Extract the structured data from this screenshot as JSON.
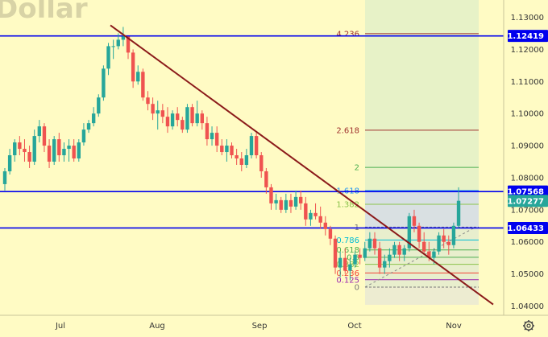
{
  "chart_data": {
    "type": "candlestick",
    "title": "Dollar",
    "ylim": [
      1.036,
      1.135
    ],
    "y_ticks": [
      "1.13000",
      "1.12000",
      "1.11000",
      "1.10000",
      "1.09000",
      "1.08000",
      "1.07000",
      "1.06000",
      "1.05000",
      "1.04000"
    ],
    "x_labels": [
      "Jul",
      "Aug",
      "Sep",
      "Oct",
      "Nov"
    ],
    "price_levels": [
      {
        "label": "1.12419",
        "value": 1.12419,
        "color": "#0000ee"
      },
      {
        "label": "1.07568",
        "value": 1.07568,
        "color": "#0000ee"
      },
      {
        "label": "1.06433",
        "value": 1.06433,
        "color": "#0000ee"
      },
      {
        "label": "1.07277",
        "value": 1.07277,
        "color": "#26a69a"
      }
    ],
    "fib_levels": [
      {
        "label": "4.236",
        "value": 1.1249,
        "color": "#a0312e"
      },
      {
        "label": "2.618",
        "value": 1.0948,
        "color": "#a0312e"
      },
      {
        "label": "2",
        "value": 1.0832,
        "color": "#4caf50"
      },
      {
        "label": "1.618",
        "value": 1.076,
        "color": "#2196f3"
      },
      {
        "label": "1.382",
        "value": 1.0717,
        "color": "#8bc34a"
      },
      {
        "label": "1",
        "value": 1.0646,
        "color": "#787878"
      },
      {
        "label": "0.786",
        "value": 1.0606,
        "color": "#00bcd4"
      },
      {
        "label": "0.618",
        "value": 1.0575,
        "color": "#4caf50"
      },
      {
        "label": "0.5",
        "value": 1.0552,
        "color": "#4caf50"
      },
      {
        "label": "0.382",
        "value": 1.053,
        "color": "#8bc34a"
      },
      {
        "label": "0.236",
        "value": 1.0503,
        "color": "#f44336"
      },
      {
        "label": "0.125",
        "value": 1.0482,
        "color": "#9c27b0"
      },
      {
        "label": "0",
        "value": 1.0459,
        "color": "#787878"
      }
    ],
    "trendline": {
      "from": {
        "date": "Jul 18",
        "price": 1.1275
      },
      "to": {
        "date": "Nov 15",
        "price": 1.0405
      }
    },
    "candles": [
      [
        1.078,
        1.083,
        1.076,
        1.082
      ],
      [
        1.082,
        1.089,
        1.081,
        1.087
      ],
      [
        1.087,
        1.092,
        1.085,
        1.091
      ],
      [
        1.091,
        1.093,
        1.087,
        1.089
      ],
      [
        1.089,
        1.092,
        1.085,
        1.088
      ],
      [
        1.088,
        1.09,
        1.083,
        1.085
      ],
      [
        1.085,
        1.095,
        1.084,
        1.093
      ],
      [
        1.093,
        1.098,
        1.091,
        1.096
      ],
      [
        1.096,
        1.097,
        1.088,
        1.09
      ],
      [
        1.09,
        1.092,
        1.083,
        1.085
      ],
      [
        1.085,
        1.093,
        1.084,
        1.092
      ],
      [
        1.092,
        1.094,
        1.085,
        1.087
      ],
      [
        1.087,
        1.091,
        1.085,
        1.089
      ],
      [
        1.089,
        1.092,
        1.085,
        1.09
      ],
      [
        1.09,
        1.092,
        1.085,
        1.086
      ],
      [
        1.086,
        1.092,
        1.085,
        1.091
      ],
      [
        1.091,
        1.097,
        1.09,
        1.095
      ],
      [
        1.095,
        1.098,
        1.094,
        1.097
      ],
      [
        1.097,
        1.102,
        1.096,
        1.1
      ],
      [
        1.1,
        1.106,
        1.099,
        1.105
      ],
      [
        1.105,
        1.115,
        1.104,
        1.114
      ],
      [
        1.114,
        1.122,
        1.112,
        1.121
      ],
      [
        1.121,
        1.123,
        1.117,
        1.121
      ],
      [
        1.121,
        1.125,
        1.12,
        1.123
      ],
      [
        1.123,
        1.127,
        1.121,
        1.124
      ],
      [
        1.124,
        1.124,
        1.117,
        1.119
      ],
      [
        1.119,
        1.12,
        1.108,
        1.11
      ],
      [
        1.11,
        1.115,
        1.109,
        1.113
      ],
      [
        1.113,
        1.114,
        1.104,
        1.105
      ],
      [
        1.105,
        1.107,
        1.101,
        1.103
      ],
      [
        1.103,
        1.105,
        1.098,
        1.1
      ],
      [
        1.1,
        1.104,
        1.095,
        1.101
      ],
      [
        1.101,
        1.103,
        1.097,
        1.099
      ],
      [
        1.099,
        1.102,
        1.094,
        1.096
      ],
      [
        1.096,
        1.101,
        1.095,
        1.1
      ],
      [
        1.1,
        1.102,
        1.096,
        1.098
      ],
      [
        1.098,
        1.099,
        1.094,
        1.095
      ],
      [
        1.095,
        1.103,
        1.094,
        1.102
      ],
      [
        1.102,
        1.103,
        1.096,
        1.097
      ],
      [
        1.097,
        1.104,
        1.096,
        1.1
      ],
      [
        1.1,
        1.101,
        1.095,
        1.097
      ],
      [
        1.097,
        1.099,
        1.09,
        1.092
      ],
      [
        1.092,
        1.096,
        1.09,
        1.094
      ],
      [
        1.094,
        1.096,
        1.088,
        1.09
      ],
      [
        1.09,
        1.092,
        1.087,
        1.088
      ],
      [
        1.088,
        1.092,
        1.085,
        1.09
      ],
      [
        1.09,
        1.091,
        1.086,
        1.087
      ],
      [
        1.087,
        1.089,
        1.084,
        1.086
      ],
      [
        1.086,
        1.088,
        1.082,
        1.084
      ],
      [
        1.084,
        1.089,
        1.083,
        1.087
      ],
      [
        1.087,
        1.094,
        1.086,
        1.093
      ],
      [
        1.093,
        1.094,
        1.086,
        1.087
      ],
      [
        1.087,
        1.088,
        1.08,
        1.082
      ],
      [
        1.082,
        1.083,
        1.075,
        1.077
      ],
      [
        1.077,
        1.078,
        1.07,
        1.072
      ],
      [
        1.072,
        1.075,
        1.07,
        1.073
      ],
      [
        1.073,
        1.074,
        1.069,
        1.07
      ],
      [
        1.07,
        1.075,
        1.069,
        1.073
      ],
      [
        1.073,
        1.075,
        1.069,
        1.071
      ],
      [
        1.071,
        1.076,
        1.07,
        1.074
      ],
      [
        1.074,
        1.076,
        1.07,
        1.072
      ],
      [
        1.072,
        1.074,
        1.065,
        1.067
      ],
      [
        1.067,
        1.07,
        1.065,
        1.069
      ],
      [
        1.069,
        1.072,
        1.067,
        1.068
      ],
      [
        1.068,
        1.071,
        1.064,
        1.066
      ],
      [
        1.066,
        1.068,
        1.062,
        1.064
      ],
      [
        1.064,
        1.065,
        1.059,
        1.061
      ],
      [
        1.061,
        1.062,
        1.05,
        1.052
      ],
      [
        1.052,
        1.057,
        1.049,
        1.055
      ],
      [
        1.055,
        1.058,
        1.05,
        1.051
      ],
      [
        1.051,
        1.055,
        1.048,
        1.053
      ],
      [
        1.053,
        1.057,
        1.052,
        1.056
      ],
      [
        1.056,
        1.058,
        1.053,
        1.055
      ],
      [
        1.055,
        1.06,
        1.054,
        1.058
      ],
      [
        1.058,
        1.063,
        1.057,
        1.061
      ],
      [
        1.061,
        1.063,
        1.056,
        1.058
      ],
      [
        1.058,
        1.06,
        1.05,
        1.052
      ],
      [
        1.052,
        1.056,
        1.05,
        1.054
      ],
      [
        1.054,
        1.058,
        1.052,
        1.056
      ],
      [
        1.056,
        1.06,
        1.055,
        1.059
      ],
      [
        1.059,
        1.06,
        1.054,
        1.056
      ],
      [
        1.056,
        1.059,
        1.054,
        1.058
      ],
      [
        1.058,
        1.069,
        1.057,
        1.068
      ],
      [
        1.068,
        1.07,
        1.063,
        1.065
      ],
      [
        1.065,
        1.066,
        1.058,
        1.06
      ],
      [
        1.06,
        1.063,
        1.056,
        1.057
      ],
      [
        1.057,
        1.06,
        1.054,
        1.055
      ],
      [
        1.055,
        1.058,
        1.053,
        1.057
      ],
      [
        1.057,
        1.063,
        1.056,
        1.062
      ],
      [
        1.062,
        1.064,
        1.058,
        1.06
      ],
      [
        1.06,
        1.062,
        1.056,
        1.059
      ],
      [
        1.059,
        1.066,
        1.058,
        1.065
      ],
      [
        1.065,
        1.077,
        1.064,
        1.0728
      ]
    ]
  },
  "icons": {
    "settings": "gear-icon"
  }
}
